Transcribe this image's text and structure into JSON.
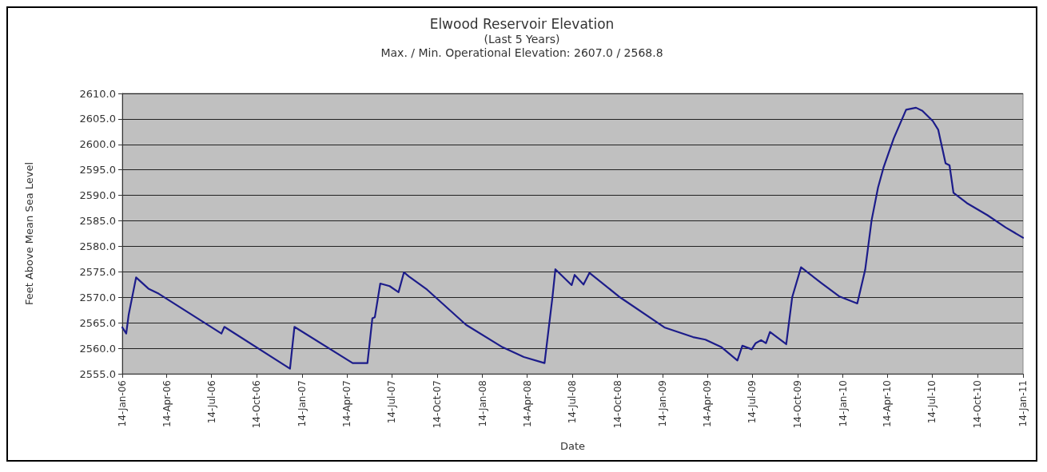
{
  "chart_data": {
    "type": "line",
    "title": "Elwood Reservoir Elevation",
    "subtitle": "(Last 5 Years)",
    "annotations": [
      "Max. / Min. Operational Elevation: 2607.0 / 2568.8"
    ],
    "xlabel": "Date",
    "ylabel": "Feet Above Mean Sea Level",
    "x": [
      "2006-01-14",
      "2006-01-22",
      "2006-01-27",
      "2006-02-11",
      "2006-03-08",
      "2006-03-29",
      "2006-08-03",
      "2006-08-09",
      "2006-12-20",
      "2006-12-29",
      "2007-04-26",
      "2007-05-26",
      "2007-06-05",
      "2007-06-10",
      "2007-06-21",
      "2007-07-10",
      "2007-07-28",
      "2007-08-08",
      "2007-08-18",
      "2007-09-24",
      "2007-12-12",
      "2008-02-24",
      "2008-04-07",
      "2008-05-19",
      "2008-06-04",
      "2008-06-10",
      "2008-07-13",
      "2008-07-19",
      "2008-08-06",
      "2008-08-18",
      "2008-10-19",
      "2009-01-17",
      "2009-03-16",
      "2009-04-10",
      "2009-05-13",
      "2009-06-14",
      "2009-06-24",
      "2009-07-13",
      "2009-07-21",
      "2009-08-01",
      "2009-08-11",
      "2009-08-19",
      "2009-09-21",
      "2009-10-03",
      "2009-10-21",
      "2009-11-30",
      "2010-01-06",
      "2010-02-12",
      "2010-02-28",
      "2010-03-13",
      "2010-03-26",
      "2010-04-06",
      "2010-04-27",
      "2010-05-22",
      "2010-06-11",
      "2010-06-24",
      "2010-07-15",
      "2010-07-26",
      "2010-08-10",
      "2010-08-18",
      "2010-08-26",
      "2010-09-22",
      "2010-11-03",
      "2010-12-10",
      "2011-01-14"
    ],
    "series": [
      {
        "color": "#1c1c8a",
        "values": [
          2564.1,
          2562.9,
          2566.6,
          2573.9,
          2571.7,
          2570.7,
          2562.9,
          2564.2,
          2556.0,
          2564.2,
          2557.1,
          2557.1,
          2565.9,
          2566.1,
          2572.7,
          2572.2,
          2571.0,
          2574.9,
          2574.1,
          2571.5,
          2564.6,
          2560.2,
          2558.3,
          2557.1,
          2570.0,
          2575.5,
          2572.4,
          2574.4,
          2572.5,
          2574.8,
          2570.0,
          2564.1,
          2562.2,
          2561.7,
          2560.2,
          2557.6,
          2560.5,
          2559.8,
          2561.0,
          2561.6,
          2561.0,
          2563.2,
          2560.8,
          2570.0,
          2575.9,
          2572.9,
          2570.2,
          2568.8,
          2575.4,
          2585.1,
          2591.5,
          2595.4,
          2601.2,
          2606.8,
          2607.2,
          2606.6,
          2604.6,
          2602.9,
          2596.3,
          2595.9,
          2590.5,
          2588.5,
          2586.1,
          2583.7,
          2581.7
        ]
      }
    ],
    "xlim": [
      "2006-01-14",
      "2011-01-14"
    ],
    "xticks": [
      {
        "value": "2006-01-14",
        "label": "14-Jan-06"
      },
      {
        "value": "2006-04-14",
        "label": "14-Apr-06"
      },
      {
        "value": "2006-07-14",
        "label": "14-Jul-06"
      },
      {
        "value": "2006-10-14",
        "label": "14-Oct-06"
      },
      {
        "value": "2007-01-14",
        "label": "14-Jan-07"
      },
      {
        "value": "2007-04-14",
        "label": "14-Apr-07"
      },
      {
        "value": "2007-07-14",
        "label": "14-Jul-07"
      },
      {
        "value": "2007-10-14",
        "label": "14-Oct-07"
      },
      {
        "value": "2008-01-14",
        "label": "14-Jan-08"
      },
      {
        "value": "2008-04-14",
        "label": "14-Apr-08"
      },
      {
        "value": "2008-07-14",
        "label": "14-Jul-08"
      },
      {
        "value": "2008-10-14",
        "label": "14-Oct-08"
      },
      {
        "value": "2009-01-14",
        "label": "14-Jan-09"
      },
      {
        "value": "2009-04-14",
        "label": "14-Apr-09"
      },
      {
        "value": "2009-07-14",
        "label": "14-Jul-09"
      },
      {
        "value": "2009-10-14",
        "label": "14-Oct-09"
      },
      {
        "value": "2010-01-14",
        "label": "14-Jan-10"
      },
      {
        "value": "2010-04-14",
        "label": "14-Apr-10"
      },
      {
        "value": "2010-07-14",
        "label": "14-Jul-10"
      },
      {
        "value": "2010-10-14",
        "label": "14-Oct-10"
      },
      {
        "value": "2011-01-14",
        "label": "14-Jan-11"
      }
    ],
    "ylim": [
      2555,
      2610
    ],
    "yticks": [
      {
        "value": 2555,
        "label": "2555.0"
      },
      {
        "value": 2560,
        "label": "2560.0"
      },
      {
        "value": 2565,
        "label": "2565.0"
      },
      {
        "value": 2570,
        "label": "2570.0"
      },
      {
        "value": 2575,
        "label": "2575.0"
      },
      {
        "value": 2580,
        "label": "2580.0"
      },
      {
        "value": 2585,
        "label": "2585.0"
      },
      {
        "value": 2590,
        "label": "2590.0"
      },
      {
        "value": 2595,
        "label": "2595.0"
      },
      {
        "value": 2600,
        "label": "2600.0"
      },
      {
        "value": 2605,
        "label": "2605.0"
      },
      {
        "value": 2610,
        "label": "2610.0"
      }
    ],
    "grid": "y",
    "marker": "none",
    "line_style": "solid"
  }
}
